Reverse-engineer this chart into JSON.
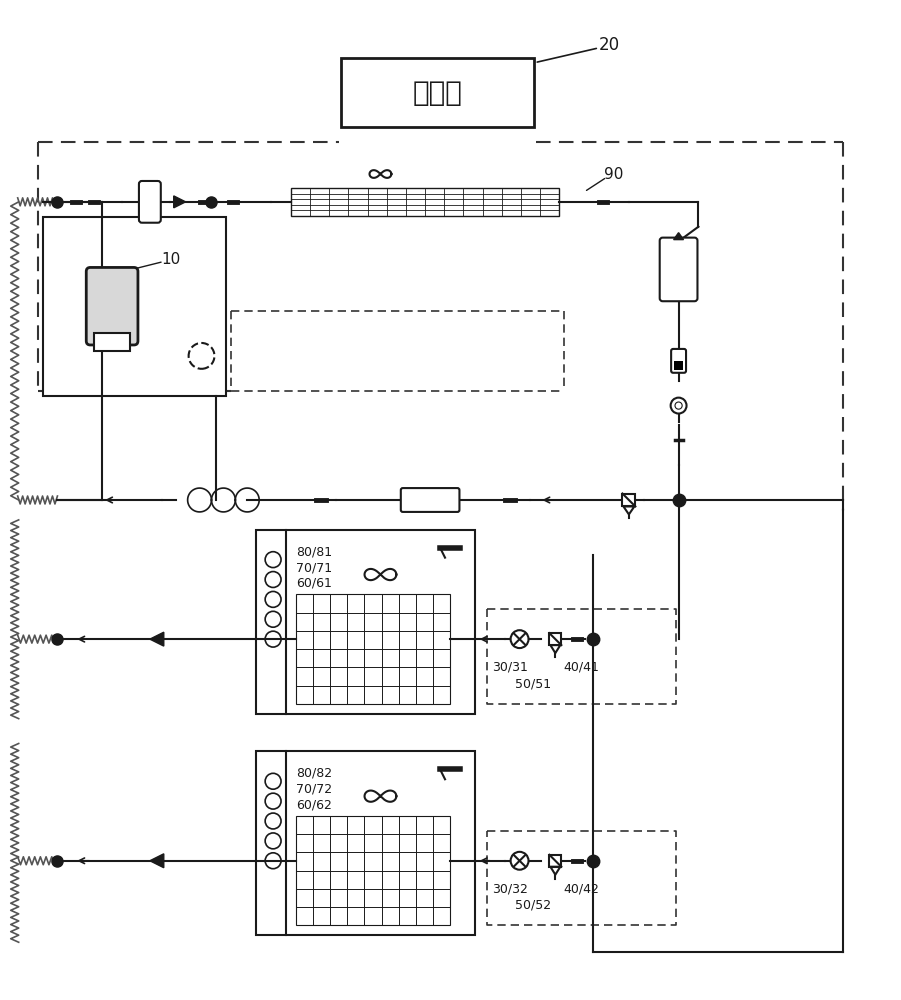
{
  "bg_color": "#ffffff",
  "line_color": "#1a1a1a",
  "dashed_color": "#333333",
  "zigzag_color": "#555555",
  "controller_label": "控制器",
  "label_20": "20",
  "label_10": "10",
  "label_90": "90",
  "label_30_31": "30/31",
  "label_50_51": "50/51",
  "label_40_41": "40/41",
  "label_80_81": "80/81",
  "label_70_71": "70/71",
  "label_60_61": "60/61",
  "label_30_32": "30/32",
  "label_50_52": "50/52",
  "label_40_42": "40/42",
  "label_80_82": "80/82",
  "label_70_72": "70/72",
  "label_60_62": "60/62"
}
